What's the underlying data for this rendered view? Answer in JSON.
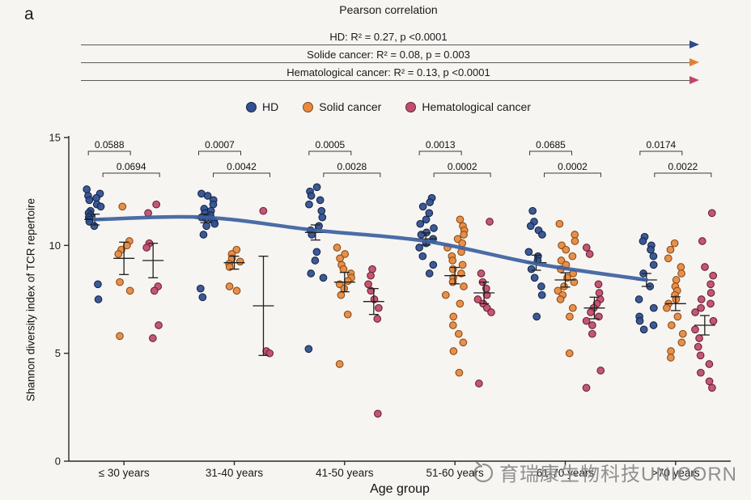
{
  "panel_label": "a",
  "title": "Pearson correlation",
  "correlations": [
    {
      "label": "HD: R² = 0.27,  p <0.0001",
      "arrow_color": "#2e4a8f"
    },
    {
      "label": "Solide cancer: R² = 0.08,  p = 0.003",
      "arrow_color": "#e07f33"
    },
    {
      "label": "Hematological cancer: R² = 0.13, p <0.0001",
      "arrow_color": "#c2456b"
    }
  ],
  "legend": [
    {
      "label": "HD",
      "color": "#31518f",
      "edge": "#16254a"
    },
    {
      "label": "Solid cancer",
      "color": "#e68a42",
      "edge": "#8a4a14"
    },
    {
      "label": "Hematological cancer",
      "color": "#bf4f6d",
      "edge": "#6d1f33"
    }
  ],
  "watermark": {
    "text": "育瑞康生物科技UNICORN"
  },
  "chart_data": {
    "type": "scatter",
    "title": "Pearson correlation",
    "xlabel": "Age group",
    "ylabel": "Shannon diversity index of TCR repertoire",
    "ylim": [
      0,
      15
    ],
    "yticks": [
      0,
      5,
      10,
      15
    ],
    "categories": [
      "≤ 30 years",
      "31-40 years",
      "41-50 years",
      "51-60 years",
      "61-70 years",
      ">70 years"
    ],
    "pvalues": [
      [
        "0.0588",
        "0.0694"
      ],
      [
        "0.0007",
        "0.0042"
      ],
      [
        "0.0005",
        "0.0028"
      ],
      [
        "0.0013",
        "0.0002"
      ],
      [
        "0.0685",
        "0.0002"
      ],
      [
        "0.0174",
        "0.0022"
      ]
    ],
    "trend": [
      11.2,
      11.3,
      10.7,
      10.2,
      9.15,
      8.4
    ],
    "trend_color": "#3c5fa0",
    "series": [
      {
        "name": "HD",
        "color": "#31518f",
        "edge": "#16254a",
        "points": [
          [
            12.6,
            12.4,
            12.3,
            12.2,
            12.1,
            11.9,
            11.8,
            11.6,
            11.5,
            11.4,
            11.3,
            11.2,
            11.1,
            10.9,
            8.2,
            7.5
          ],
          [
            12.4,
            12.3,
            12.1,
            11.9,
            11.7,
            11.6,
            11.5,
            11.4,
            11.3,
            11.25,
            11.2,
            11.1,
            11.0,
            10.9,
            10.5,
            8.0,
            7.6
          ],
          [
            12.7,
            12.5,
            12.3,
            12.1,
            11.9,
            11.6,
            11.3,
            10.9,
            10.7,
            10.5,
            9.7,
            9.3,
            8.7,
            8.5,
            5.2
          ],
          [
            12.2,
            12.0,
            11.8,
            11.5,
            11.2,
            11.0,
            10.8,
            10.6,
            10.5,
            10.3,
            10.1,
            9.9,
            9.5,
            9.1,
            8.7
          ],
          [
            11.6,
            11.1,
            10.9,
            10.7,
            10.5,
            9.7,
            9.5,
            9.3,
            8.9,
            8.5,
            8.1,
            7.7,
            6.7
          ],
          [
            10.4,
            10.2,
            10.0,
            9.8,
            9.5,
            9.1,
            8.7,
            8.1,
            7.5,
            7.1,
            6.7,
            6.5,
            6.3,
            6.1
          ]
        ],
        "means": [
          11.2,
          11.25,
          10.6,
          10.3,
          9.2,
          8.4
        ],
        "errors": [
          0.25,
          0.2,
          0.35,
          0.28,
          0.35,
          0.3
        ]
      },
      {
        "name": "Solid cancer",
        "color": "#e68a42",
        "edge": "#8a4a14",
        "points": [
          [
            11.8,
            10.2,
            10.0,
            9.8,
            9.6,
            8.3,
            7.9,
            5.8
          ],
          [
            9.8,
            9.6,
            9.4,
            9.25,
            9.15,
            9.0,
            8.1,
            7.9
          ],
          [
            9.9,
            9.6,
            9.4,
            9.1,
            8.9,
            8.7,
            8.5,
            8.35,
            8.2,
            8.0,
            7.7,
            6.8,
            4.5
          ],
          [
            11.2,
            10.9,
            10.7,
            10.5,
            10.3,
            10.1,
            9.9,
            9.7,
            9.5,
            9.3,
            9.1,
            8.9,
            8.7,
            8.5,
            8.3,
            8.1,
            7.7,
            7.3,
            6.7,
            6.3,
            5.9,
            5.5,
            5.1,
            4.1
          ],
          [
            11.0,
            10.5,
            10.2,
            10.0,
            9.8,
            9.5,
            9.3,
            9.1,
            8.9,
            8.7,
            8.5,
            8.3,
            8.1,
            7.9,
            7.7,
            7.5,
            7.1,
            6.7,
            5.0
          ],
          [
            10.1,
            9.8,
            9.4,
            9.0,
            8.7,
            8.4,
            8.1,
            7.9,
            7.7,
            7.5,
            7.3,
            7.1,
            6.7,
            6.3,
            5.9,
            5.5,
            5.1,
            4.8
          ]
        ],
        "means": [
          9.4,
          9.2,
          8.3,
          8.6,
          8.4,
          7.3
        ],
        "errors": [
          0.75,
          0.3,
          0.45,
          0.38,
          0.33,
          0.32
        ]
      },
      {
        "name": "Hematological cancer",
        "color": "#bf4f6d",
        "edge": "#6d1f33",
        "points": [
          [
            11.9,
            11.5,
            10.1,
            9.9,
            8.1,
            7.9,
            6.3,
            5.7
          ],
          [
            11.6,
            5.1,
            5.0
          ],
          [
            8.9,
            8.6,
            8.2,
            7.9,
            7.5,
            7.1,
            6.6,
            2.2
          ],
          [
            11.1,
            8.7,
            8.3,
            8.0,
            7.7,
            7.5,
            7.3,
            7.1,
            6.9,
            3.6
          ],
          [
            9.9,
            9.6,
            8.2,
            7.8,
            7.5,
            7.3,
            7.1,
            6.9,
            6.7,
            6.5,
            6.3,
            5.9,
            4.2,
            3.4
          ],
          [
            11.5,
            10.2,
            9.0,
            8.6,
            8.2,
            7.8,
            7.5,
            7.3,
            7.1,
            6.9,
            6.5,
            6.1,
            5.7,
            5.3,
            4.9,
            4.5,
            4.1,
            3.7,
            3.4
          ]
        ],
        "means": [
          9.3,
          7.2,
          7.4,
          7.8,
          7.1,
          6.3
        ],
        "errors": [
          0.8,
          2.3,
          0.6,
          0.5,
          0.5,
          0.45
        ]
      }
    ]
  }
}
